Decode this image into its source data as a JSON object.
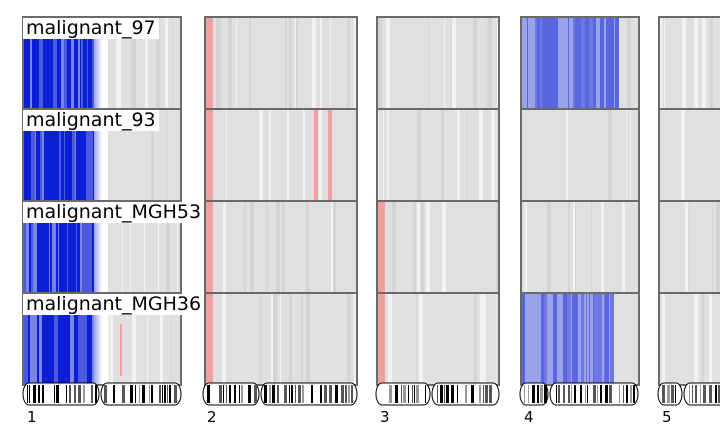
{
  "samples": [
    "malignant_97",
    "malignant_93",
    "malignant_MGH53",
    "malignant_MGH36"
  ],
  "chromosomes": [
    "1",
    "2",
    "3",
    "4",
    "5"
  ],
  "colors": {
    "background": "#e0e0e0",
    "loss_strong": "#0a1fd6",
    "loss_mild": "#6f78e0",
    "gain": "#f0a0a0",
    "frame": "#6a6a6a"
  },
  "cnv": {
    "1": [
      "loss_strong",
      "loss_strong",
      "loss_strong",
      "loss_strong"
    ],
    "2": [
      "gain_edge",
      "gain_edge_spots",
      "gain_edge",
      "gain_edge"
    ],
    "3": [
      "neutral",
      "neutral",
      "gain_edge",
      "gain_edge"
    ],
    "4": [
      "loss_mild",
      "neutral",
      "neutral",
      "loss_mild"
    ],
    "5": [
      "neutral",
      "neutral",
      "neutral",
      "neutral"
    ]
  }
}
